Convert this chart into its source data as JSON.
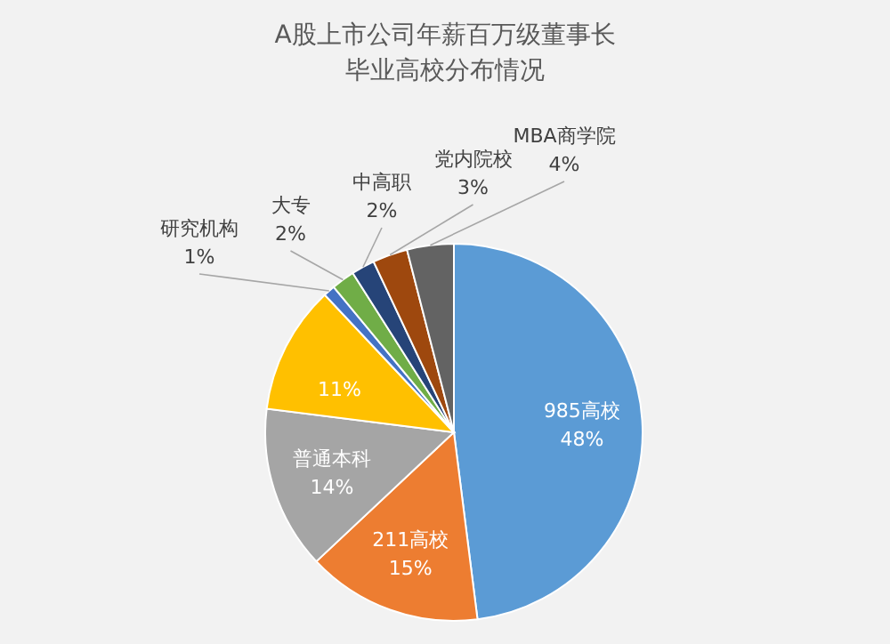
{
  "chart_data": {
    "type": "pie",
    "title": "A股上市公司年薪百万级董事长毕业高校分布情况",
    "categories": [
      "985高校",
      "211高校",
      "普通本科",
      null,
      "研究机构",
      "大专",
      "中高职",
      "党内院校",
      "MBA商学院"
    ],
    "values": [
      48,
      15,
      14,
      11,
      1,
      2,
      2,
      3,
      4
    ],
    "colors": [
      "#5b9bd5",
      "#ed7d31",
      "#a5a5a5",
      "#ffc000",
      "#4472c4",
      "#70ad47",
      "#264478",
      "#9e480e",
      "#636363"
    ],
    "value_labels": [
      "48%",
      "15%",
      "14%",
      "11%",
      "1%",
      "2%",
      "2%",
      "3%",
      "4%"
    ]
  }
}
